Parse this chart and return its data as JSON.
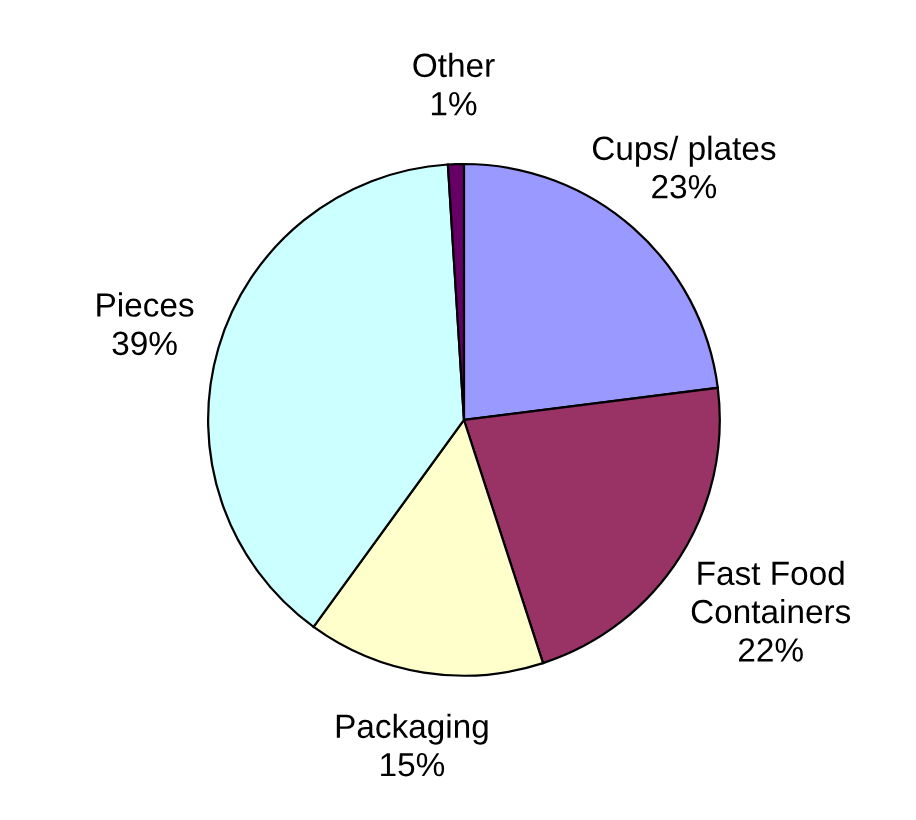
{
  "chart_data": {
    "type": "pie",
    "categories": [
      "Cups/ plates",
      "Fast Food Containers",
      "Packaging",
      "Pieces",
      "Other"
    ],
    "values": [
      23,
      22,
      15,
      39,
      1
    ],
    "value_labels": [
      "23%",
      "22%",
      "15%",
      "39%",
      "1%"
    ],
    "colors": [
      "#9999ff",
      "#993366",
      "#ffffcc",
      "#ccffff",
      "#660066"
    ]
  }
}
